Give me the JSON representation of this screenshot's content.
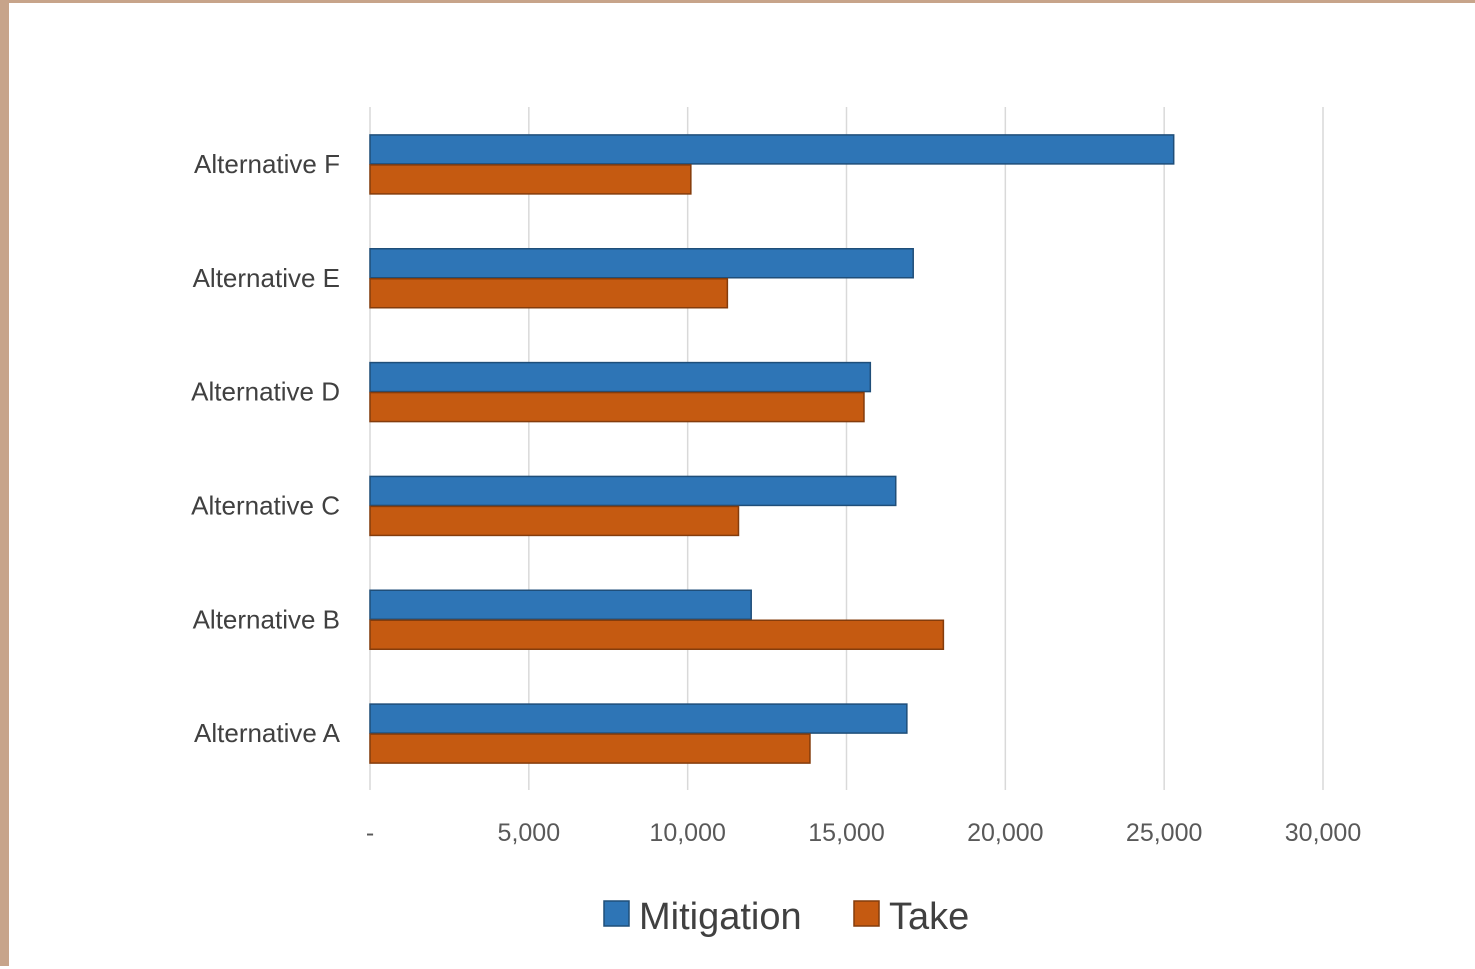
{
  "chart_data": {
    "type": "bar",
    "orientation": "horizontal",
    "categories": [
      "Alternative A",
      "Alternative B",
      "Alternative C",
      "Alternative D",
      "Alternative E",
      "Alternative F"
    ],
    "series": [
      {
        "name": "Mitigation",
        "color": "#2e75b6",
        "values": [
          16900,
          12000,
          16550,
          15750,
          17100,
          25300
        ]
      },
      {
        "name": "Take",
        "color": "#c55a11",
        "values": [
          13850,
          18050,
          11600,
          15550,
          11250,
          10100
        ]
      }
    ],
    "xlim": [
      0,
      30000
    ],
    "x_ticks": [
      0,
      5000,
      10000,
      15000,
      20000,
      25000,
      30000
    ],
    "x_tick_labels": [
      "-",
      "5,000",
      "10,000",
      "15,000",
      "20,000",
      "25,000",
      "30,000"
    ],
    "grid": "vertical",
    "legend": "bottom",
    "title": "",
    "xlabel": "",
    "ylabel": ""
  }
}
